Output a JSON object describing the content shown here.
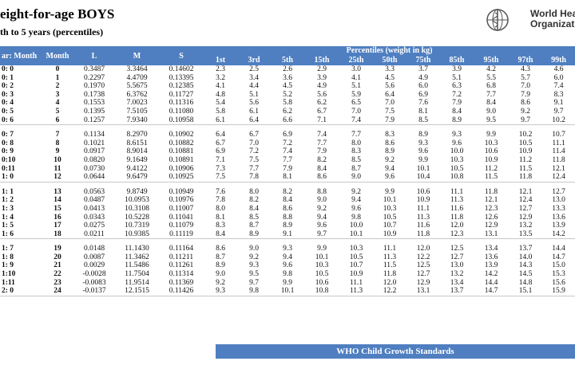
{
  "header": {
    "title": "eight-for-age BOYS",
    "subtitle": "th to 5 years (percentiles)",
    "logo": [
      "World Health",
      "Organization"
    ]
  },
  "table": {
    "group_header": "Percentiles (weight in kg)",
    "columns": [
      "ar: Month",
      "Month",
      "L",
      "M",
      "S",
      "1st",
      "3rd",
      "5th",
      "15th",
      "25th",
      "50th",
      "75th",
      "85th",
      "95th",
      "97th",
      "99th"
    ],
    "groups": [
      [
        [
          "0: 0",
          "0",
          "0.3487",
          "3.3464",
          "0.14602",
          "2.3",
          "2.5",
          "2.6",
          "2.9",
          "3.0",
          "3.3",
          "3.7",
          "3.9",
          "4.2",
          "4.3",
          "4.6"
        ],
        [
          "0: 1",
          "1",
          "0.2297",
          "4.4709",
          "0.13395",
          "3.2",
          "3.4",
          "3.6",
          "3.9",
          "4.1",
          "4.5",
          "4.9",
          "5.1",
          "5.5",
          "5.7",
          "6.0"
        ],
        [
          "0: 2",
          "2",
          "0.1970",
          "5.5675",
          "0.12385",
          "4.1",
          "4.4",
          "4.5",
          "4.9",
          "5.1",
          "5.6",
          "6.0",
          "6.3",
          "6.8",
          "7.0",
          "7.4"
        ],
        [
          "0: 3",
          "3",
          "0.1738",
          "6.3762",
          "0.11727",
          "4.8",
          "5.1",
          "5.2",
          "5.6",
          "5.9",
          "6.4",
          "6.9",
          "7.2",
          "7.7",
          "7.9",
          "8.3"
        ],
        [
          "0: 4",
          "4",
          "0.1553",
          "7.0023",
          "0.11316",
          "5.4",
          "5.6",
          "5.8",
          "6.2",
          "6.5",
          "7.0",
          "7.6",
          "7.9",
          "8.4",
          "8.6",
          "9.1"
        ],
        [
          "0: 5",
          "5",
          "0.1395",
          "7.5105",
          "0.11080",
          "5.8",
          "6.1",
          "6.2",
          "6.7",
          "7.0",
          "7.5",
          "8.1",
          "8.4",
          "9.0",
          "9.2",
          "9.7"
        ],
        [
          "0: 6",
          "6",
          "0.1257",
          "7.9340",
          "0.10958",
          "6.1",
          "6.4",
          "6.6",
          "7.1",
          "7.4",
          "7.9",
          "8.5",
          "8.9",
          "9.5",
          "9.7",
          "10.2"
        ]
      ],
      [
        [
          "0: 7",
          "7",
          "0.1134",
          "8.2970",
          "0.10902",
          "6.4",
          "6.7",
          "6.9",
          "7.4",
          "7.7",
          "8.3",
          "8.9",
          "9.3",
          "9.9",
          "10.2",
          "10.7"
        ],
        [
          "0: 8",
          "8",
          "0.1021",
          "8.6151",
          "0.10882",
          "6.7",
          "7.0",
          "7.2",
          "7.7",
          "8.0",
          "8.6",
          "9.3",
          "9.6",
          "10.3",
          "10.5",
          "11.1"
        ],
        [
          "0: 9",
          "9",
          "0.0917",
          "8.9014",
          "0.10881",
          "6.9",
          "7.2",
          "7.4",
          "7.9",
          "8.3",
          "8.9",
          "9.6",
          "10.0",
          "10.6",
          "10.9",
          "11.4"
        ],
        [
          "0:10",
          "10",
          "0.0820",
          "9.1649",
          "0.10891",
          "7.1",
          "7.5",
          "7.7",
          "8.2",
          "8.5",
          "9.2",
          "9.9",
          "10.3",
          "10.9",
          "11.2",
          "11.8"
        ],
        [
          "0:11",
          "11",
          "0.0730",
          "9.4122",
          "0.10906",
          "7.3",
          "7.7",
          "7.9",
          "8.4",
          "8.7",
          "9.4",
          "10.1",
          "10.5",
          "11.2",
          "11.5",
          "12.1"
        ],
        [
          "1: 0",
          "12",
          "0.0644",
          "9.6479",
          "0.10925",
          "7.5",
          "7.8",
          "8.1",
          "8.6",
          "9.0",
          "9.6",
          "10.4",
          "10.8",
          "11.5",
          "11.8",
          "12.4"
        ]
      ],
      [
        [
          "1: 1",
          "13",
          "0.0563",
          "9.8749",
          "0.10949",
          "7.6",
          "8.0",
          "8.2",
          "8.8",
          "9.2",
          "9.9",
          "10.6",
          "11.1",
          "11.8",
          "12.1",
          "12.7"
        ],
        [
          "1: 2",
          "14",
          "0.0487",
          "10.0953",
          "0.10976",
          "7.8",
          "8.2",
          "8.4",
          "9.0",
          "9.4",
          "10.1",
          "10.9",
          "11.3",
          "12.1",
          "12.4",
          "13.0"
        ],
        [
          "1: 3",
          "15",
          "0.0413",
          "10.3108",
          "0.11007",
          "8.0",
          "8.4",
          "8.6",
          "9.2",
          "9.6",
          "10.3",
          "11.1",
          "11.6",
          "12.3",
          "12.7",
          "13.3"
        ],
        [
          "1: 4",
          "16",
          "0.0343",
          "10.5228",
          "0.11041",
          "8.1",
          "8.5",
          "8.8",
          "9.4",
          "9.8",
          "10.5",
          "11.3",
          "11.8",
          "12.6",
          "12.9",
          "13.6"
        ],
        [
          "1: 5",
          "17",
          "0.0275",
          "10.7319",
          "0.11079",
          "8.3",
          "8.7",
          "8.9",
          "9.6",
          "10.0",
          "10.7",
          "11.6",
          "12.0",
          "12.9",
          "13.2",
          "13.9"
        ],
        [
          "1: 6",
          "18",
          "0.0211",
          "10.9385",
          "0.11119",
          "8.4",
          "8.9",
          "9.1",
          "9.7",
          "10.1",
          "10.9",
          "11.8",
          "12.3",
          "13.1",
          "13.5",
          "14.2"
        ]
      ],
      [
        [
          "1: 7",
          "19",
          "0.0148",
          "11.1430",
          "0.11164",
          "8.6",
          "9.0",
          "9.3",
          "9.9",
          "10.3",
          "11.1",
          "12.0",
          "12.5",
          "13.4",
          "13.7",
          "14.4"
        ],
        [
          "1: 8",
          "20",
          "0.0087",
          "11.3462",
          "0.11211",
          "8.7",
          "9.2",
          "9.4",
          "10.1",
          "10.5",
          "11.3",
          "12.2",
          "12.7",
          "13.6",
          "14.0",
          "14.7"
        ],
        [
          "1: 9",
          "21",
          "0.0029",
          "11.5486",
          "0.11261",
          "8.9",
          "9.3",
          "9.6",
          "10.3",
          "10.7",
          "11.5",
          "12.5",
          "13.0",
          "13.9",
          "14.3",
          "15.0"
        ],
        [
          "1:10",
          "22",
          "-0.0028",
          "11.7504",
          "0.11314",
          "9.0",
          "9.5",
          "9.8",
          "10.5",
          "10.9",
          "11.8",
          "12.7",
          "13.2",
          "14.2",
          "14.5",
          "15.3"
        ],
        [
          "1:11",
          "23",
          "-0.0083",
          "11.9514",
          "0.11369",
          "9.2",
          "9.7",
          "9.9",
          "10.6",
          "11.1",
          "12.0",
          "12.9",
          "13.4",
          "14.4",
          "14.8",
          "15.6"
        ],
        [
          "2: 0",
          "24",
          "-0.0137",
          "12.1515",
          "0.11426",
          "9.3",
          "9.8",
          "10.1",
          "10.8",
          "11.3",
          "12.2",
          "13.1",
          "13.7",
          "14.7",
          "15.1",
          "15.9"
        ]
      ]
    ]
  },
  "footer": "WHO Child Growth Standards"
}
